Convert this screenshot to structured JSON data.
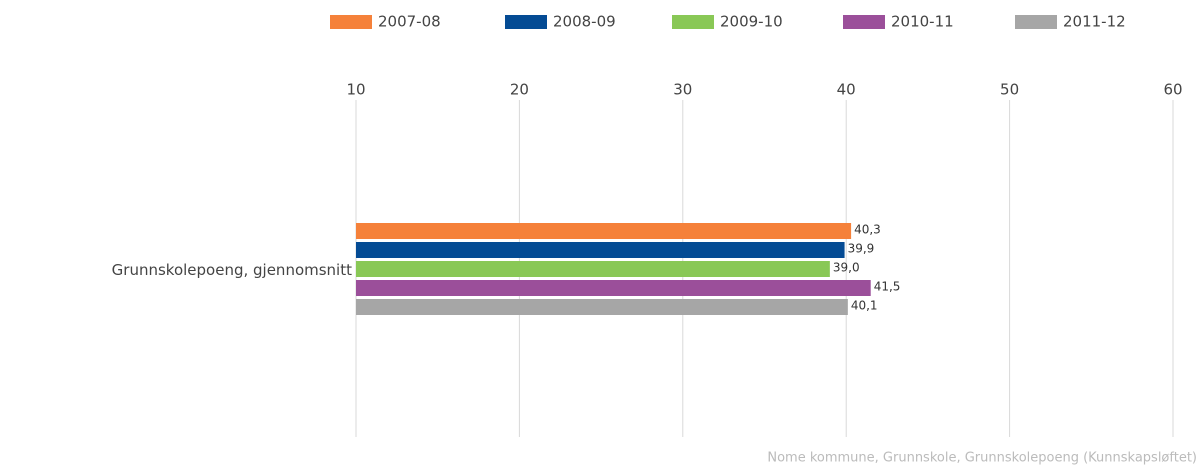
{
  "chart_data": {
    "type": "hbar",
    "categories": [
      "Grunnskolepoeng, gjennomsnitt"
    ],
    "series": [
      {
        "name": "2007-08",
        "color": "#f5813a",
        "values": [
          40.3
        ],
        "value_labels": [
          "40,3"
        ]
      },
      {
        "name": "2008-09",
        "color": "#044b94",
        "values": [
          39.9
        ],
        "value_labels": [
          "39,9"
        ]
      },
      {
        "name": "2009-10",
        "color": "#89c856",
        "values": [
          39.0
        ],
        "value_labels": [
          "39,0"
        ]
      },
      {
        "name": "2010-11",
        "color": "#9b4f9a",
        "values": [
          41.5
        ],
        "value_labels": [
          "41,5"
        ]
      },
      {
        "name": "2011-12",
        "color": "#a6a6a6",
        "values": [
          40.1
        ],
        "value_labels": [
          "40,1"
        ]
      }
    ],
    "xlim": [
      10,
      60
    ],
    "xticks": [
      10,
      20,
      30,
      40,
      50,
      60
    ],
    "grid": true,
    "legend": "top",
    "caption": "Nome kommune, Grunnskole, Grunnskolepoeng (Kunnskapsløftet)"
  }
}
